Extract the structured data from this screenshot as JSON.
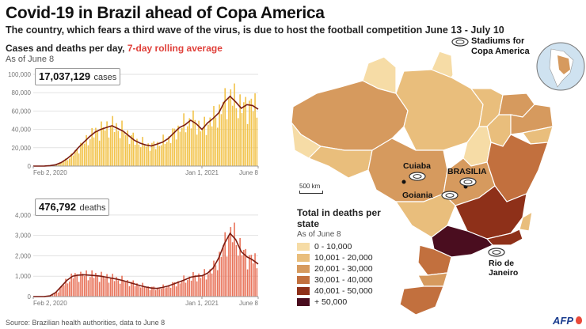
{
  "header": {
    "title": "Covid-19 in Brazil ahead of Copa America",
    "subtitle": "The country, which fears a third wave of the virus, is due to host the football competition June 13 - July 10"
  },
  "panel": {
    "heading_main": "Cases and deaths per day, ",
    "heading_accent": "7-day rolling average",
    "as_of": "As of June 8"
  },
  "colors": {
    "cases_bar": "#f2c34a",
    "cases_line": "#7a1c12",
    "deaths_bar": "#e8735a",
    "deaths_line": "#7a1c12",
    "map_scale": [
      "#f6dca6",
      "#e9be7c",
      "#d69a5e",
      "#c2703e",
      "#8e3019",
      "#4a0d1f"
    ]
  },
  "chart_data": [
    {
      "type": "bar",
      "name": "cases",
      "total_value": "17,037,129",
      "total_unit": "cases",
      "ylim": [
        0,
        100000
      ],
      "yticks": [
        {
          "value": 0,
          "label": "0"
        },
        {
          "value": 20000,
          "label": "20,000"
        },
        {
          "value": 40000,
          "label": "40,000"
        },
        {
          "value": 60000,
          "label": "60,000"
        },
        {
          "value": 80000,
          "label": "80,000"
        },
        {
          "value": 100000,
          "label": "100,000"
        }
      ],
      "xticks": [
        {
          "index": 0,
          "label": "Feb 2, 2020"
        },
        {
          "index": 30,
          "label": "Jan 1, 2021"
        },
        {
          "index": 40,
          "label": "June 8"
        }
      ],
      "rolling_average": [
        0,
        0,
        100,
        500,
        1500,
        4000,
        8000,
        13000,
        20000,
        26000,
        32000,
        37000,
        40000,
        42000,
        44000,
        41000,
        38000,
        33000,
        28000,
        25000,
        23000,
        22000,
        24000,
        26000,
        30000,
        36000,
        42000,
        45000,
        50000,
        46000,
        40000,
        47000,
        52000,
        58000,
        70000,
        76000,
        70000,
        63000,
        67000,
        66000,
        62000
      ]
    },
    {
      "type": "bar",
      "name": "deaths",
      "total_value": "476,792",
      "total_unit": "deaths",
      "ylim": [
        0,
        4500
      ],
      "yticks": [
        {
          "value": 0,
          "label": "0"
        },
        {
          "value": 1000,
          "label": "1,000"
        },
        {
          "value": 2000,
          "label": "2,000"
        },
        {
          "value": 3000,
          "label": "3,000"
        },
        {
          "value": 4000,
          "label": "4,000"
        }
      ],
      "xticks": [
        {
          "index": 0,
          "label": "Feb 2, 2020"
        },
        {
          "index": 30,
          "label": "Jan 1, 2021"
        },
        {
          "index": 40,
          "label": "June 8"
        }
      ],
      "rolling_average": [
        0,
        0,
        5,
        40,
        200,
        500,
        800,
        1000,
        1050,
        1070,
        1050,
        1030,
        1000,
        950,
        900,
        850,
        780,
        700,
        620,
        540,
        470,
        420,
        400,
        450,
        520,
        620,
        720,
        830,
        950,
        1000,
        1020,
        1150,
        1400,
        1900,
        2600,
        3100,
        2800,
        2200,
        1950,
        1800,
        1600
      ]
    }
  ],
  "map": {
    "legend_title": "Total in deaths per state",
    "legend_as_of": "As of June 8",
    "legend_items": [
      "0 - 10,000",
      "10,001 - 20,000",
      "20,001 - 30,000",
      "30,001 - 40,000",
      "40,001 - 50,000",
      "+ 50,000"
    ],
    "stadium_legend": "Stadiums for Copa America",
    "scale_label": "500 km",
    "cities": {
      "cuiaba": "Cuiaba",
      "brasilia": "BRASILIA",
      "goiania": "Goiania",
      "rio": "Rio de Janeiro"
    }
  },
  "footer": {
    "source": "Source: Brazilian health authorities, data to June 8",
    "logo": "AFP"
  }
}
